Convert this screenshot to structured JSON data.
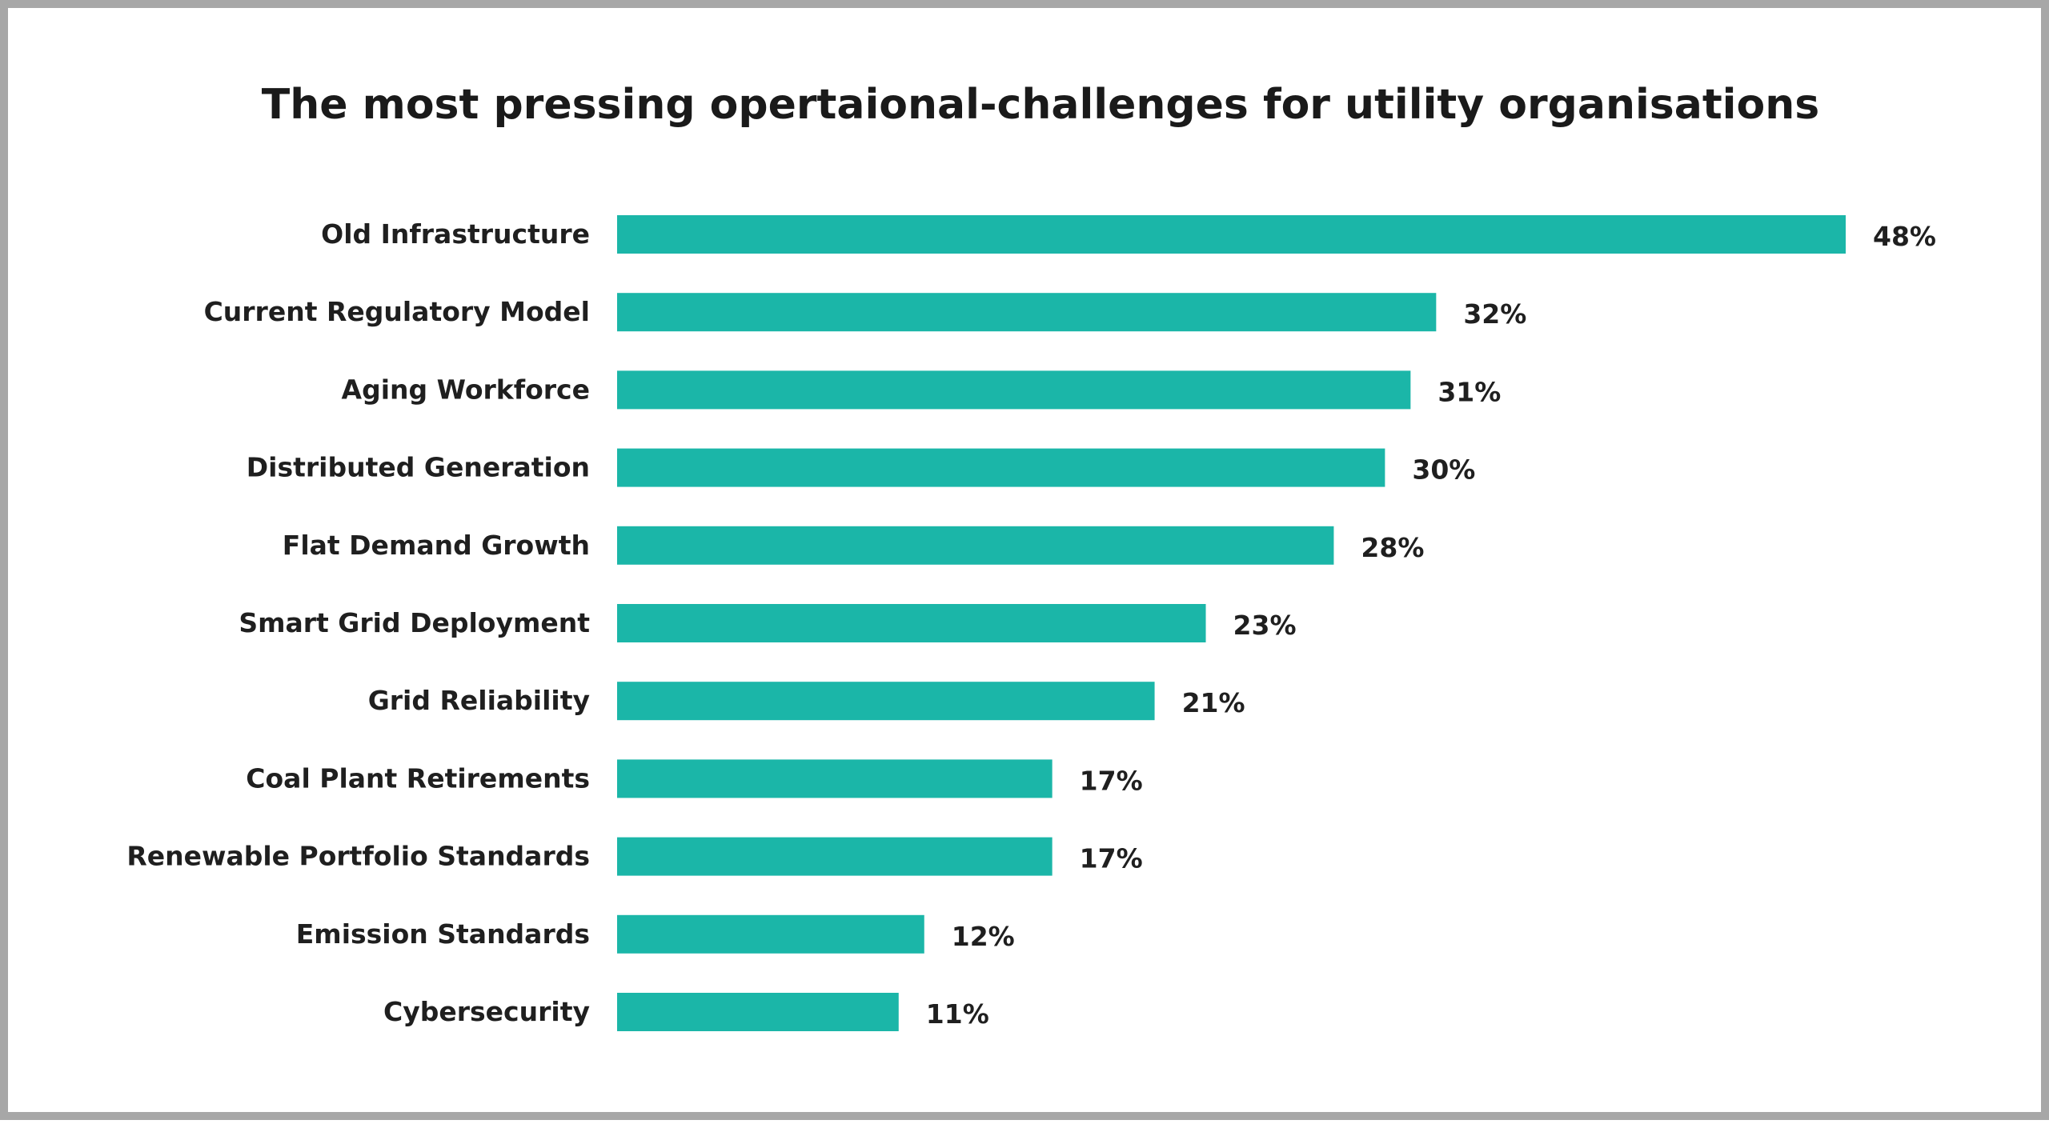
{
  "chart_data": {
    "type": "bar",
    "orientation": "horizontal",
    "title": "The most pressing opertaional-challenges for utility organisations",
    "categories": [
      "Old Infrastructure",
      "Current Regulatory Model",
      "Aging Workforce",
      "Distributed Generation",
      "Flat Demand Growth",
      "Smart Grid Deployment",
      "Grid Reliability",
      "Coal Plant Retirements",
      "Renewable Portfolio Standards",
      "Emission Standards",
      "Cybersecurity"
    ],
    "values": [
      48,
      32,
      31,
      30,
      28,
      23,
      21,
      17,
      17,
      12,
      11
    ],
    "value_labels": [
      "48%",
      "32%",
      "31%",
      "30%",
      "28%",
      "23%",
      "21%",
      "17%",
      "17%",
      "12%",
      "11%"
    ],
    "unit": "%",
    "xlim": [
      0,
      48
    ],
    "grid": false,
    "legend": "none",
    "bar_color": "#1bb6a8"
  }
}
